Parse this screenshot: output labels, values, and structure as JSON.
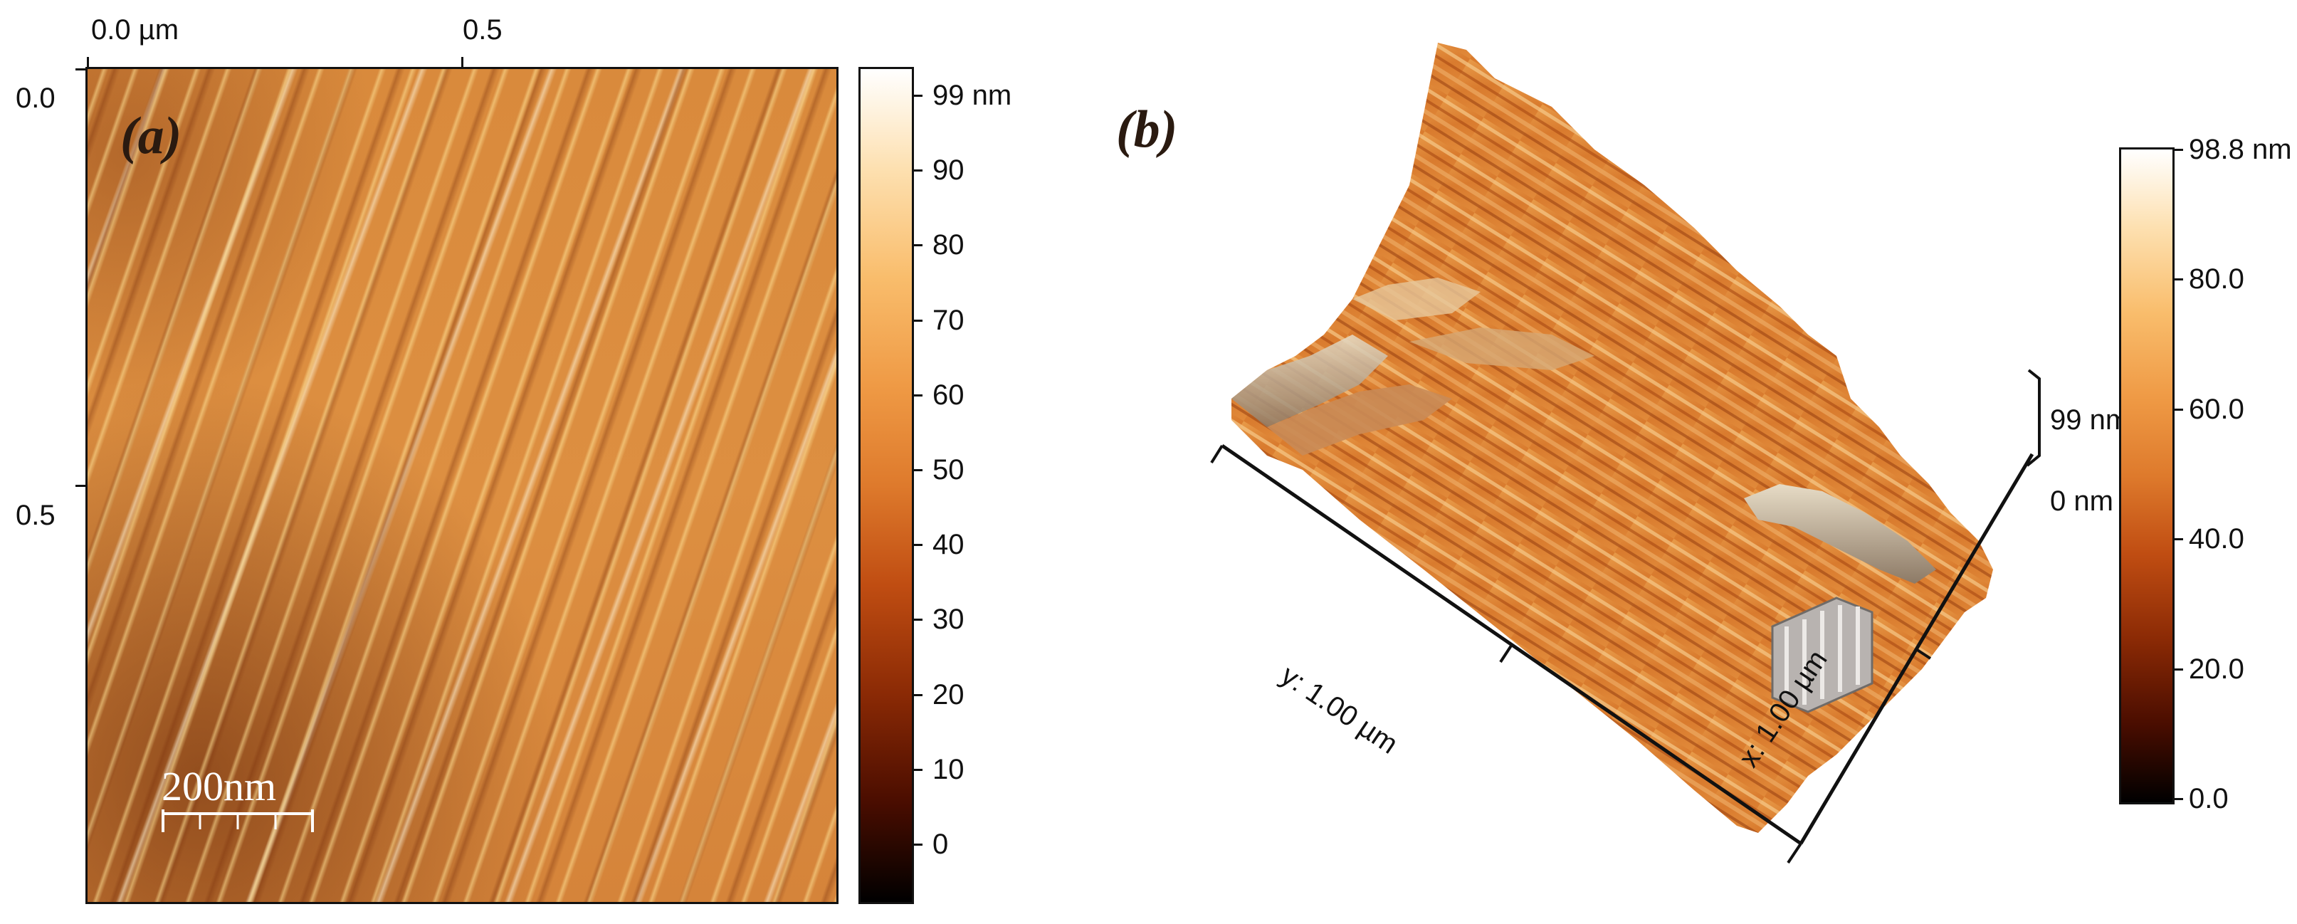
{
  "panel_a": {
    "label": "(a)",
    "x_axis_ticks": [
      "0.0 µm",
      "0.5"
    ],
    "y_axis_ticks": [
      "0.0",
      "0.5"
    ],
    "scale_bar": "200nm",
    "colorbar_ticks": [
      "99 nm",
      "90",
      "80",
      "70",
      "60",
      "50",
      "40",
      "30",
      "20",
      "10",
      "0"
    ]
  },
  "panel_b": {
    "label": "(b)",
    "y_axis_label": "y: 1.00 µm",
    "x_axis_label": "x: 1.00 µm",
    "z_axis_top": "99 nm",
    "z_axis_bottom": "0 nm",
    "colorbar_ticks": [
      "98.8 nm",
      "80.0",
      "60.0",
      "40.0",
      "20.0",
      "0.0"
    ]
  },
  "colors": {
    "colormap": [
      "#000000",
      "#8b2a05",
      "#de7a2c",
      "#f9bd6c",
      "#ffffff"
    ]
  }
}
